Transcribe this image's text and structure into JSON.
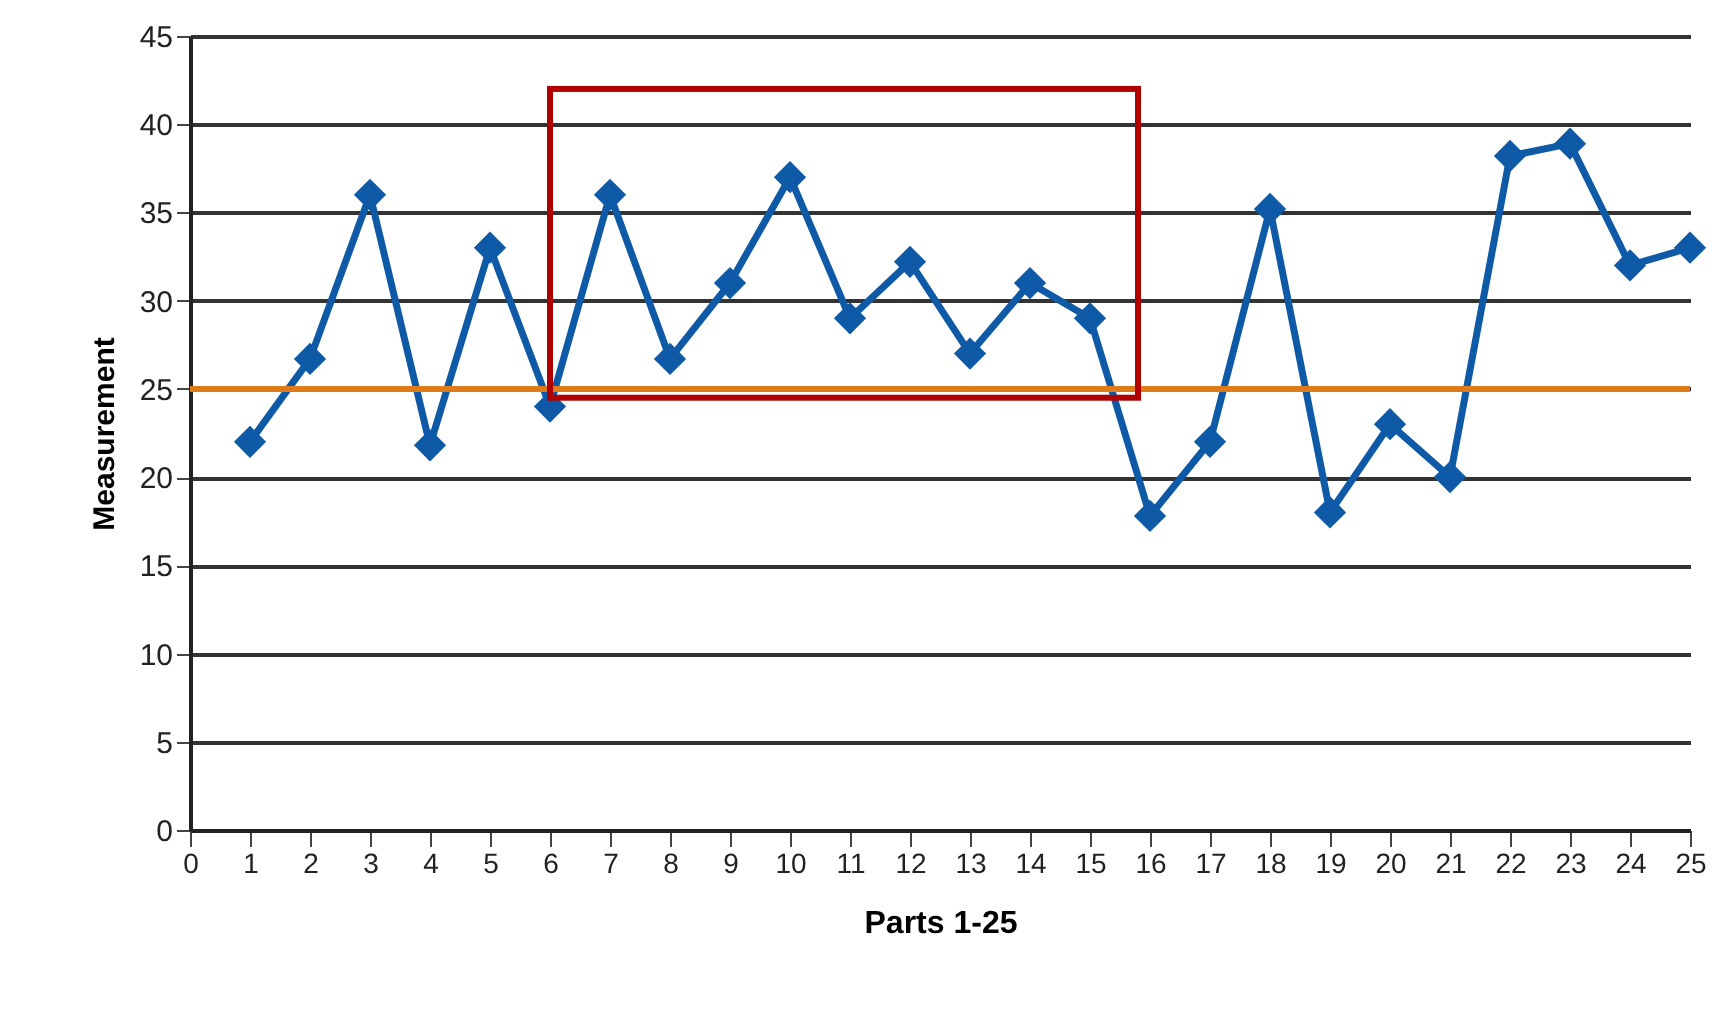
{
  "chart_data": {
    "type": "line",
    "xlabel": "Parts 1-25",
    "ylabel": "Measurement",
    "x": [
      1,
      2,
      3,
      4,
      5,
      6,
      7,
      8,
      9,
      10,
      11,
      12,
      13,
      14,
      15,
      16,
      17,
      18,
      19,
      20,
      21,
      22,
      23,
      24,
      25
    ],
    "series": [
      {
        "color": "#0e5aa7",
        "values": [
          22,
          26.7,
          36,
          21.8,
          33,
          24,
          36,
          26.7,
          31,
          37,
          29,
          32.2,
          27,
          31,
          29,
          17.8,
          22,
          35.2,
          18,
          23,
          20,
          38.2,
          38.9,
          32,
          33
        ]
      }
    ],
    "xlim": [
      0,
      25
    ],
    "xticks": [
      0,
      1,
      2,
      3,
      4,
      5,
      6,
      7,
      8,
      9,
      10,
      11,
      12,
      13,
      14,
      15,
      16,
      17,
      18,
      19,
      20,
      21,
      22,
      23,
      24,
      25
    ],
    "ylim": [
      0,
      45
    ],
    "yticks": [
      0,
      5,
      10,
      15,
      20,
      25,
      30,
      35,
      40,
      45
    ],
    "ref_lines": [
      {
        "axis": "y",
        "value": 25,
        "color": "#e07b1a"
      }
    ],
    "grid": "y",
    "marker": "diamond",
    "line_style": "solid"
  }
}
